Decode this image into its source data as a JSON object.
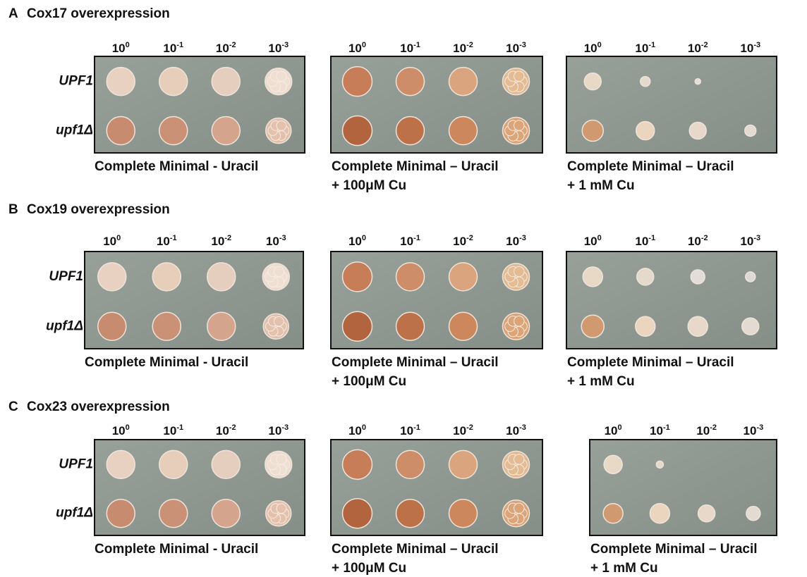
{
  "panels": [
    {
      "letter": "A",
      "title": "Cox17 overexpression",
      "row_labels": [
        "UPF1",
        "upf1Δ"
      ],
      "plates": [
        {
          "dilutions": [
            {
              "base": "10",
              "exp": "0"
            },
            {
              "base": "10",
              "exp": "-1"
            },
            {
              "base": "10",
              "exp": "-2"
            },
            {
              "base": "10",
              "exp": "-3"
            }
          ],
          "caption": [
            "Complete Minimal - Uracil"
          ]
        },
        {
          "dilutions": [
            {
              "base": "10",
              "exp": "0"
            },
            {
              "base": "10",
              "exp": "-1"
            },
            {
              "base": "10",
              "exp": "-2"
            },
            {
              "base": "10",
              "exp": "-3"
            }
          ],
          "caption": [
            "Complete Minimal – Uracil",
            "+ 100μM Cu"
          ]
        },
        {
          "dilutions": [
            {
              "base": "10",
              "exp": "0"
            },
            {
              "base": "10",
              "exp": "-1"
            },
            {
              "base": "10",
              "exp": "-2"
            },
            {
              "base": "10",
              "exp": "-3"
            }
          ],
          "caption": [
            "Complete Minimal – Uracil",
            "+ 1 mM Cu"
          ]
        }
      ]
    },
    {
      "letter": "B",
      "title": "Cox19 overexpression",
      "row_labels": [
        "UPF1",
        "upf1Δ"
      ],
      "plates": [
        {
          "dilutions": [
            {
              "base": "10",
              "exp": "0"
            },
            {
              "base": "10",
              "exp": "-1"
            },
            {
              "base": "10",
              "exp": "-2"
            },
            {
              "base": "10",
              "exp": "-3"
            }
          ],
          "caption": [
            "Complete Minimal - Uracil"
          ]
        },
        {
          "dilutions": [
            {
              "base": "10",
              "exp": "0"
            },
            {
              "base": "10",
              "exp": "-1"
            },
            {
              "base": "10",
              "exp": "-2"
            },
            {
              "base": "10",
              "exp": "-3"
            }
          ],
          "caption": [
            "Complete Minimal – Uracil",
            "+ 100μM Cu"
          ]
        },
        {
          "dilutions": [
            {
              "base": "10",
              "exp": "0"
            },
            {
              "base": "10",
              "exp": "-1"
            },
            {
              "base": "10",
              "exp": "-2"
            },
            {
              "base": "10",
              "exp": "-3"
            }
          ],
          "caption": [
            "Complete Minimal – Uracil",
            "+ 1 mM Cu"
          ]
        }
      ]
    },
    {
      "letter": "C",
      "title": "Cox23 overexpression",
      "row_labels": [
        "UPF1",
        "upf1Δ"
      ],
      "plates": [
        {
          "dilutions": [
            {
              "base": "10",
              "exp": "0"
            },
            {
              "base": "10",
              "exp": "-1"
            },
            {
              "base": "10",
              "exp": "-2"
            },
            {
              "base": "10",
              "exp": "-3"
            }
          ],
          "caption": [
            "Complete Minimal - Uracil"
          ]
        },
        {
          "dilutions": [
            {
              "base": "10",
              "exp": "0"
            },
            {
              "base": "10",
              "exp": "-1"
            },
            {
              "base": "10",
              "exp": "-2"
            },
            {
              "base": "10",
              "exp": "-3"
            }
          ],
          "caption": [
            "Complete Minimal – Uracil",
            "+ 100μM Cu"
          ]
        },
        {
          "dilutions": [
            {
              "base": "10",
              "exp": "0"
            },
            {
              "base": "10",
              "exp": "-1"
            },
            {
              "base": "10",
              "exp": "-2"
            },
            {
              "base": "10",
              "exp": "-3"
            }
          ],
          "caption": [
            "Complete Minimal – Uracil",
            "+ 1 mM Cu"
          ]
        }
      ]
    }
  ]
}
